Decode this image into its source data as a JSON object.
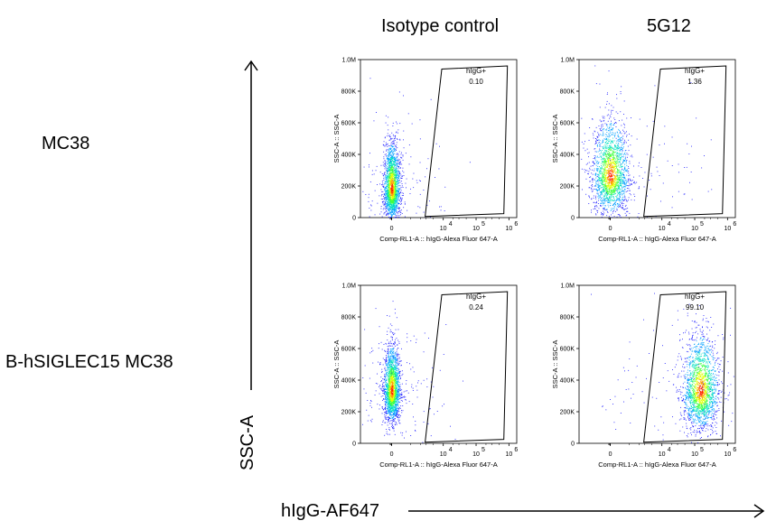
{
  "columns": [
    "Isotype control",
    "5G12"
  ],
  "rows": [
    "MC38",
    "B-hSIGLEC15 MC38"
  ],
  "y_axis_main_label": "SSC-A",
  "x_axis_main_label": "hIgG-AF647",
  "colors": {
    "density_low": "#0000ff",
    "density_mid": "#00c8ff",
    "density_high": "#ff3000",
    "gate": "#000000"
  },
  "chart_data": [
    {
      "type": "scatter",
      "row": "MC38",
      "column": "Isotype control",
      "xlabel": "Comp-RL1-A :: hIgG-Alexa Fluor   647-A",
      "ylabel": "SSC-A :: SSC-A",
      "yticks": [
        "0",
        "200K",
        "400K",
        "600K",
        "800K",
        "1.0M"
      ],
      "xticks": [
        "0",
        "10",
        "10",
        "10"
      ],
      "xtick_exponents": [
        "",
        "4",
        "5",
        "6"
      ],
      "gate": {
        "name": "hIgG+",
        "percent": "0.10"
      },
      "population": {
        "center_x": 0,
        "center_ssc": 180000,
        "spread": "narrow",
        "count": 0.95
      }
    },
    {
      "type": "scatter",
      "row": "MC38",
      "column": "5G12",
      "xlabel": "Comp-RL1-A :: hIgG-Alexa Fluor   647-A",
      "ylabel": "SSC-A :: SSC-A",
      "yticks": [
        "0",
        "200K",
        "400K",
        "600K",
        "800K",
        "1.0M"
      ],
      "xticks": [
        "0",
        "10",
        "10",
        "10"
      ],
      "xtick_exponents": [
        "",
        "4",
        "5",
        "6"
      ],
      "gate": {
        "name": "hIgG+",
        "percent": "1.36"
      },
      "population": {
        "center_x": 0,
        "center_ssc": 260000,
        "spread": "wide",
        "count": 1.0
      }
    },
    {
      "type": "scatter",
      "row": "B-hSIGLEC15 MC38",
      "column": "Isotype control",
      "xlabel": "Comp-RL1-A :: hIgG-Alexa Fluor   647-A",
      "ylabel": "SSC-A :: SSC-A",
      "yticks": [
        "0",
        "200K",
        "400K",
        "600K",
        "800K",
        "1.0M"
      ],
      "xticks": [
        "0",
        "10",
        "10",
        "10"
      ],
      "xtick_exponents": [
        "",
        "4",
        "5",
        "6"
      ],
      "gate": {
        "name": "hIgG+",
        "percent": "0.24"
      },
      "population": {
        "center_x": 0,
        "center_ssc": 330000,
        "spread": "narrow",
        "count": 1.0
      }
    },
    {
      "type": "scatter",
      "row": "B-hSIGLEC15 MC38",
      "column": "5G12",
      "xlabel": "Comp-RL1-A :: hIgG-Alexa Fluor   647-A",
      "ylabel": "SSC-A :: SSC-A",
      "yticks": [
        "0",
        "200K",
        "400K",
        "600K",
        "800K",
        "1.0M"
      ],
      "xticks": [
        "0",
        "10",
        "10",
        "10"
      ],
      "xtick_exponents": [
        "",
        "4",
        "5",
        "6"
      ],
      "gate": {
        "name": "hIgG+",
        "percent": "99.10"
      },
      "population": {
        "center_x": 150000,
        "center_ssc": 330000,
        "spread": "wide",
        "count": 1.0
      }
    }
  ]
}
